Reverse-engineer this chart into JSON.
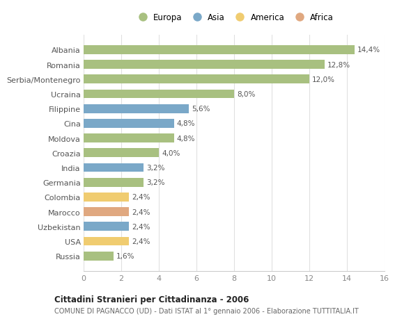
{
  "countries": [
    "Albania",
    "Romania",
    "Serbia/Montenegro",
    "Ucraina",
    "Filippine",
    "Cina",
    "Moldova",
    "Croazia",
    "India",
    "Germania",
    "Colombia",
    "Marocco",
    "Uzbekistan",
    "USA",
    "Russia"
  ],
  "values": [
    14.4,
    12.8,
    12.0,
    8.0,
    5.6,
    4.8,
    4.8,
    4.0,
    3.2,
    3.2,
    2.4,
    2.4,
    2.4,
    2.4,
    1.6
  ],
  "labels": [
    "14,4%",
    "12,8%",
    "12,0%",
    "8,0%",
    "5,6%",
    "4,8%",
    "4,8%",
    "4,0%",
    "3,2%",
    "3,2%",
    "2,4%",
    "2,4%",
    "2,4%",
    "2,4%",
    "1,6%"
  ],
  "continents": [
    "Europa",
    "Europa",
    "Europa",
    "Europa",
    "Asia",
    "Asia",
    "Europa",
    "Europa",
    "Asia",
    "Europa",
    "America",
    "Africa",
    "Asia",
    "America",
    "Europa"
  ],
  "continent_colors": {
    "Europa": "#a8c080",
    "Asia": "#7aa8c8",
    "America": "#f0cc70",
    "Africa": "#e0a880"
  },
  "legend_order": [
    "Europa",
    "Asia",
    "America",
    "Africa"
  ],
  "title": "Cittadini Stranieri per Cittadinanza - 2006",
  "subtitle": "COMUNE DI PAGNACCO (UD) - Dati ISTAT al 1° gennaio 2006 - Elaborazione TUTTITALIA.IT",
  "xlim": [
    0,
    16
  ],
  "xticks": [
    0,
    2,
    4,
    6,
    8,
    10,
    12,
    14,
    16
  ],
  "background_color": "#ffffff",
  "grid_color": "#e0e0e0",
  "bar_height": 0.6,
  "figsize": [
    6.0,
    4.6
  ],
  "dpi": 100
}
